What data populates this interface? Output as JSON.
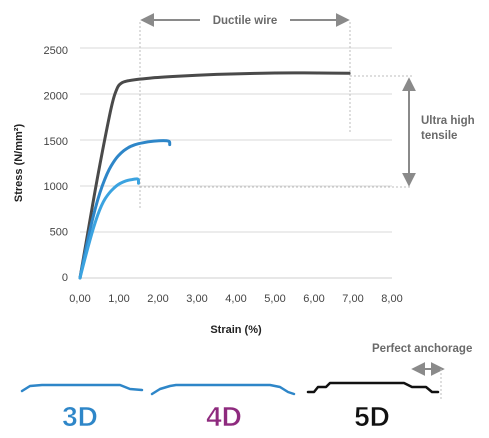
{
  "chart_data": {
    "type": "line",
    "xlabel": "Strain (%)",
    "ylabel": "Stress (N/mm²)",
    "xlim": [
      0,
      8
    ],
    "ylim": [
      0,
      2500
    ],
    "x_ticks": [
      "0,00",
      "1,00",
      "2,00",
      "3,00",
      "4,00",
      "5,00",
      "6,00",
      "7,00",
      "8,00"
    ],
    "y_ticks": [
      "0",
      "500",
      "1000",
      "1500",
      "2000",
      "2500"
    ],
    "grid": "horizontal",
    "series": [
      {
        "color": "#4a4a4a",
        "x": [
          0,
          0.2,
          0.45,
          0.7,
          0.85,
          0.95,
          1.0,
          1.1,
          1.3,
          1.6,
          2.0,
          3.0,
          4.0,
          5.0,
          6.0,
          6.9
        ],
        "y": [
          0,
          500,
          1100,
          1650,
          1950,
          2060,
          2100,
          2130,
          2150,
          2165,
          2180,
          2205,
          2220,
          2228,
          2230,
          2225
        ]
      },
      {
        "color": "#2e86c8",
        "x": [
          0,
          0.2,
          0.45,
          0.7,
          0.9,
          1.05,
          1.2,
          1.4,
          1.6,
          1.9,
          2.15,
          2.3,
          2.3
        ],
        "y": [
          0,
          430,
          860,
          1150,
          1290,
          1360,
          1410,
          1450,
          1470,
          1490,
          1495,
          1490,
          1450
        ]
      },
      {
        "color": "#3ba3e0",
        "x": [
          0,
          0.15,
          0.35,
          0.55,
          0.75,
          0.95,
          1.1,
          1.25,
          1.4,
          1.5,
          1.5
        ],
        "y": [
          0,
          250,
          560,
          800,
          930,
          1010,
          1045,
          1065,
          1075,
          1080,
          1030
        ]
      }
    ],
    "annotations": [
      {
        "text": "Ductile wire",
        "x_from": 1.5,
        "x_to": 6.9
      },
      {
        "text_lines": [
          "Ultra high",
          "tensile"
        ],
        "y_from": 1000,
        "y_to": 2225
      }
    ]
  },
  "products": [
    {
      "label": "3D",
      "color": "#2e86c8"
    },
    {
      "label": "4D",
      "color": "#8e2a7e"
    },
    {
      "label": "5D",
      "color": "#111111"
    }
  ],
  "perfect_anchorage": "Perfect anchorage"
}
